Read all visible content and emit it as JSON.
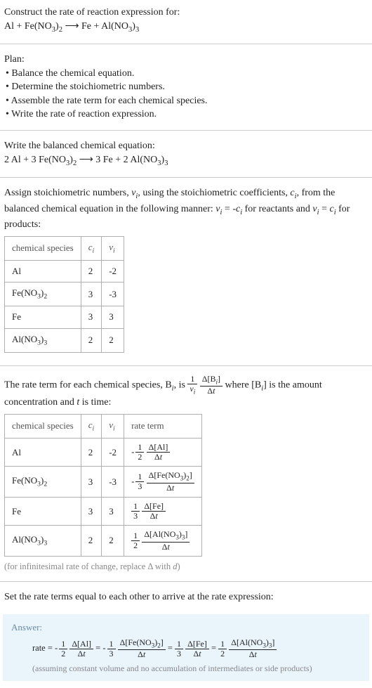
{
  "intro": {
    "line1": "Construct the rate of reaction expression for:",
    "equation_html": "Al + Fe(NO<sub>3</sub>)<sub>2</sub> ⟶ Fe + Al(NO<sub>3</sub>)<sub>3</sub>"
  },
  "plan": {
    "heading": "Plan:",
    "items": [
      "• Balance the chemical equation.",
      "• Determine the stoichiometric numbers.",
      "• Assemble the rate term for each chemical species.",
      "• Write the rate of reaction expression."
    ]
  },
  "balanced": {
    "heading": "Write the balanced chemical equation:",
    "equation_html": "2 Al + 3 Fe(NO<sub>3</sub>)<sub>2</sub> ⟶ 3 Fe + 2 Al(NO<sub>3</sub>)<sub>3</sub>"
  },
  "stoich": {
    "text_html": "Assign stoichiometric numbers, <i>ν<sub>i</sub></i>, using the stoichiometric coefficients, <i>c<sub>i</sub></i>, from the balanced chemical equation in the following manner: <i>ν<sub>i</sub></i> = -<i>c<sub>i</sub></i> for reactants and <i>ν<sub>i</sub></i> = <i>c<sub>i</sub></i> for products:",
    "table": {
      "headers": [
        "chemical species",
        "c_i",
        "ν_i"
      ],
      "headers_html": [
        "chemical species",
        "<i>c<sub>i</sub></i>",
        "<i>ν<sub>i</sub></i>"
      ],
      "rows": [
        {
          "species_html": "Al",
          "c": "2",
          "nu": "-2"
        },
        {
          "species_html": "Fe(NO<sub>3</sub>)<sub>2</sub>",
          "c": "3",
          "nu": "-3"
        },
        {
          "species_html": "Fe",
          "c": "3",
          "nu": "3"
        },
        {
          "species_html": "Al(NO<sub>3</sub>)<sub>3</sub>",
          "c": "2",
          "nu": "2"
        }
      ]
    }
  },
  "rateterm": {
    "text_before": "The rate term for each chemical species, B",
    "text_mid1": ", is ",
    "frac1_num_html": "1",
    "frac1_den_html": "<i>ν<sub>i</sub></i>",
    "frac2_num_html": "Δ[B<sub><i>i</i></sub>]",
    "frac2_den_html": "Δ<i>t</i>",
    "text_mid2": " where [B",
    "text_after": "] is the amount concentration and ",
    "text_time": " is time:",
    "table": {
      "headers_html": [
        "chemical species",
        "<i>c<sub>i</sub></i>",
        "<i>ν<sub>i</sub></i>",
        "rate term"
      ],
      "rows": [
        {
          "species_html": "Al",
          "c": "2",
          "nu": "-2",
          "sign": "-",
          "coef_num": "1",
          "coef_den": "2",
          "delta_num_html": "Δ[Al]",
          "delta_den_html": "Δ<i>t</i>"
        },
        {
          "species_html": "Fe(NO<sub>3</sub>)<sub>2</sub>",
          "c": "3",
          "nu": "-3",
          "sign": "-",
          "coef_num": "1",
          "coef_den": "3",
          "delta_num_html": "Δ[Fe(NO<sub>3</sub>)<sub>2</sub>]",
          "delta_den_html": "Δ<i>t</i>"
        },
        {
          "species_html": "Fe",
          "c": "3",
          "nu": "3",
          "sign": "",
          "coef_num": "1",
          "coef_den": "3",
          "delta_num_html": "Δ[Fe]",
          "delta_den_html": "Δ<i>t</i>"
        },
        {
          "species_html": "Al(NO<sub>3</sub>)<sub>3</sub>",
          "c": "2",
          "nu": "2",
          "sign": "",
          "coef_num": "1",
          "coef_den": "2",
          "delta_num_html": "Δ[Al(NO<sub>3</sub>)<sub>3</sub>]",
          "delta_den_html": "Δ<i>t</i>"
        }
      ]
    },
    "footnote_html": "(for infinitesimal rate of change, replace Δ with <i>d</i>)"
  },
  "set_equal": "Set the rate terms equal to each other to arrive at the rate expression:",
  "answer": {
    "label": "Answer:",
    "prefix": "rate = ",
    "terms": [
      {
        "sign": "-",
        "coef_num": "1",
        "coef_den": "2",
        "delta_num_html": "Δ[Al]",
        "delta_den_html": "Δ<i>t</i>"
      },
      {
        "sign": "-",
        "coef_num": "1",
        "coef_den": "3",
        "delta_num_html": "Δ[Fe(NO<sub>3</sub>)<sub>2</sub>]",
        "delta_den_html": "Δ<i>t</i>"
      },
      {
        "sign": "",
        "coef_num": "1",
        "coef_den": "3",
        "delta_num_html": "Δ[Fe]",
        "delta_den_html": "Δ<i>t</i>"
      },
      {
        "sign": "",
        "coef_num": "1",
        "coef_den": "2",
        "delta_num_html": "Δ[Al(NO<sub>3</sub>)<sub>3</sub>]",
        "delta_den_html": "Δ<i>t</i>"
      }
    ],
    "note": "(assuming constant volume and no accumulation of intermediates or side products)"
  },
  "colors": {
    "rule": "#cccccc",
    "answer_bg": "#e9f4fb",
    "answer_label": "#6b8aa3",
    "muted": "#888888"
  }
}
